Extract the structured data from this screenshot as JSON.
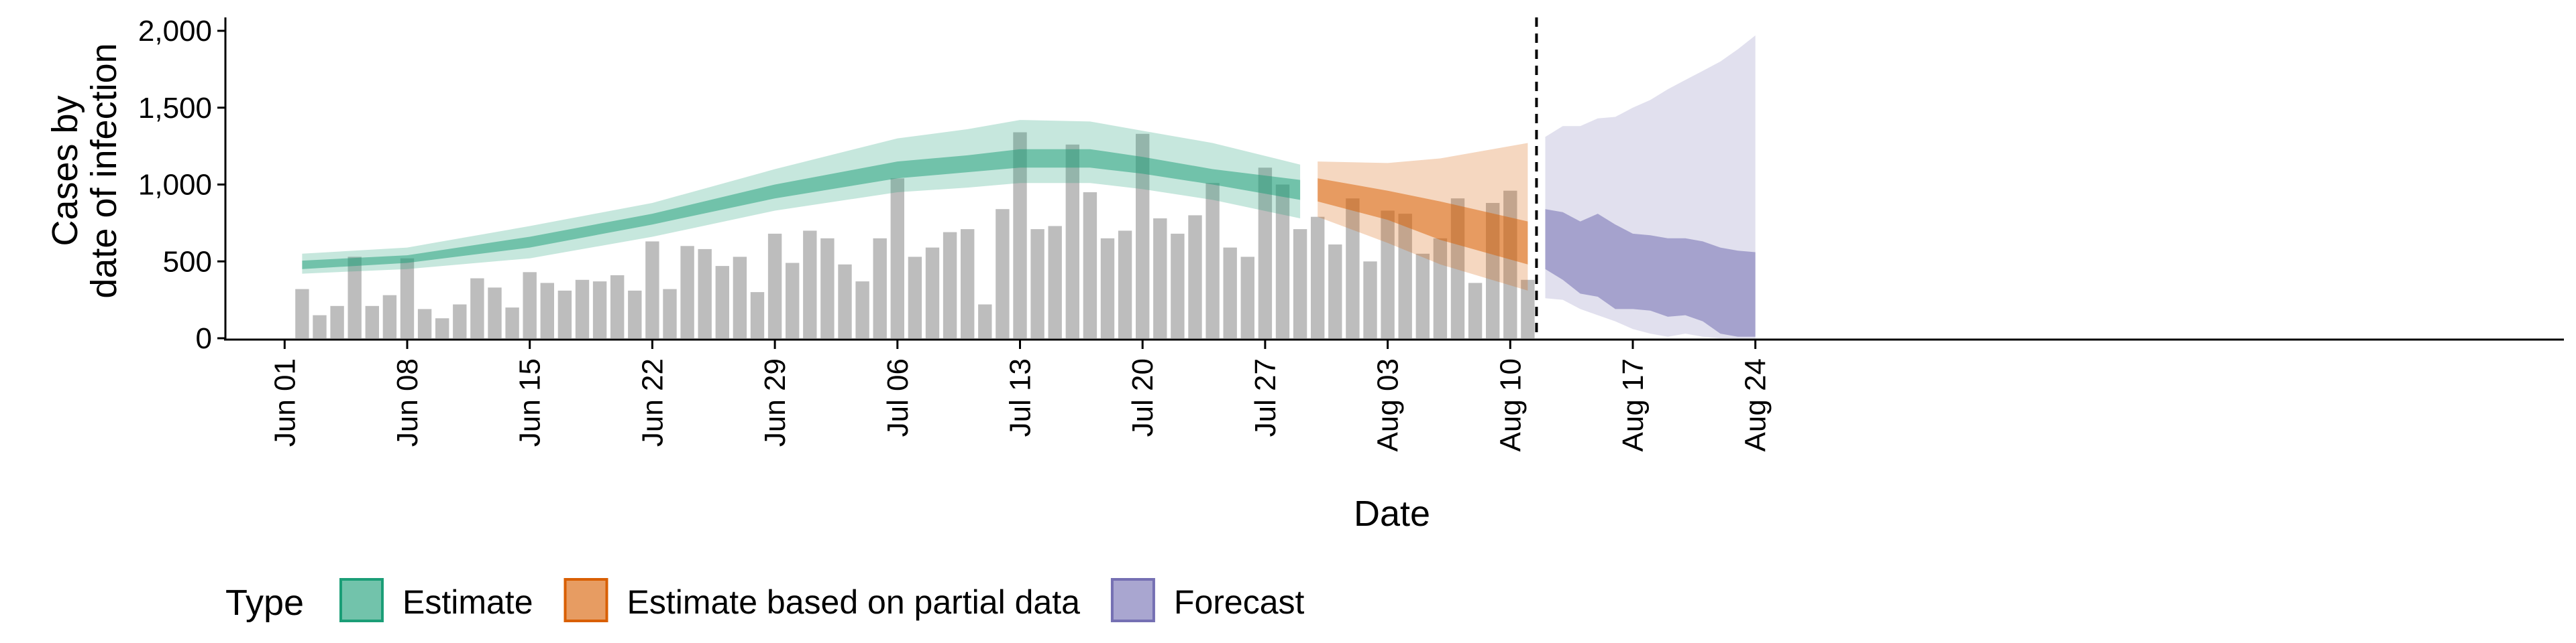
{
  "chart_data": {
    "type": "bar",
    "xlabel": "Date",
    "ylabel_lines": [
      "Cases by",
      "date of infection"
    ],
    "ylim": [
      0,
      2000
    ],
    "y_ticks": [
      0,
      500,
      1000,
      1500,
      2000
    ],
    "y_tick_labels": [
      "0",
      "500",
      "1,000",
      "1,500",
      "2,000"
    ],
    "x_ticks": [
      {
        "date": "2020-06-01",
        "label": "Jun 01"
      },
      {
        "date": "2020-06-08",
        "label": "Jun 08"
      },
      {
        "date": "2020-06-15",
        "label": "Jun 15"
      },
      {
        "date": "2020-06-22",
        "label": "Jun 22"
      },
      {
        "date": "2020-06-29",
        "label": "Jun 29"
      },
      {
        "date": "2020-07-06",
        "label": "Jul 06"
      },
      {
        "date": "2020-07-13",
        "label": "Jul 13"
      },
      {
        "date": "2020-07-20",
        "label": "Jul 20"
      },
      {
        "date": "2020-07-27",
        "label": "Jul 27"
      },
      {
        "date": "2020-08-03",
        "label": "Aug 03"
      },
      {
        "date": "2020-08-10",
        "label": "Aug 10"
      },
      {
        "date": "2020-08-17",
        "label": "Aug 17"
      },
      {
        "date": "2020-08-24",
        "label": "Aug 24"
      }
    ],
    "x_range": [
      "2020-05-29",
      "2020-08-28"
    ],
    "reported_cases": {
      "start_date": "2020-06-02",
      "values": [
        320,
        150,
        210,
        530,
        210,
        280,
        520,
        190,
        130,
        220,
        390,
        330,
        200,
        430,
        360,
        310,
        380,
        370,
        410,
        310,
        630,
        320,
        600,
        580,
        470,
        530,
        300,
        680,
        490,
        700,
        650,
        480,
        370,
        650,
        1040,
        530,
        590,
        690,
        710,
        220,
        840,
        1340,
        710,
        730,
        1260,
        950,
        650,
        700,
        1330,
        780,
        680,
        800,
        1010,
        590,
        530,
        1110,
        1000,
        710,
        790,
        610,
        910,
        500,
        830,
        810,
        550,
        650,
        910,
        360,
        880,
        960,
        380
      ]
    },
    "estimate_dates": [
      "2020-06-02",
      "2020-06-08",
      "2020-06-15",
      "2020-06-22",
      "2020-06-29",
      "2020-07-06",
      "2020-07-10",
      "2020-07-13",
      "2020-07-17",
      "2020-07-20",
      "2020-07-24",
      "2020-07-29"
    ],
    "estimate": {
      "outer_lower": [
        420,
        450,
        520,
        660,
        830,
        950,
        980,
        1010,
        1010,
        970,
        900,
        780
      ],
      "outer_upper": [
        550,
        590,
        730,
        880,
        1100,
        1300,
        1360,
        1420,
        1410,
        1350,
        1270,
        1130
      ],
      "inner_lower": [
        450,
        490,
        590,
        740,
        910,
        1040,
        1080,
        1110,
        1110,
        1070,
        1000,
        900
      ],
      "inner_upper": [
        505,
        540,
        660,
        810,
        1000,
        1150,
        1190,
        1230,
        1230,
        1180,
        1100,
        1030
      ]
    },
    "partial_dates": [
      "2020-07-30",
      "2020-08-03",
      "2020-08-06",
      "2020-08-11"
    ],
    "partial": {
      "outer_lower": [
        790,
        620,
        480,
        310
      ],
      "outer_upper": [
        1150,
        1140,
        1170,
        1270
      ],
      "inner_lower": [
        890,
        770,
        640,
        480
      ],
      "inner_upper": [
        1040,
        960,
        890,
        760
      ]
    },
    "forecast_dates": [
      "2020-08-12",
      "2020-08-13",
      "2020-08-14",
      "2020-08-15",
      "2020-08-16",
      "2020-08-17",
      "2020-08-18",
      "2020-08-19",
      "2020-08-20",
      "2020-08-21",
      "2020-08-22",
      "2020-08-23",
      "2020-08-24"
    ],
    "forecast": {
      "outer_lower": [
        260,
        250,
        190,
        150,
        110,
        60,
        30,
        10,
        30,
        10,
        0,
        0,
        0
      ],
      "outer_upper": [
        1310,
        1380,
        1380,
        1430,
        1440,
        1500,
        1550,
        1620,
        1680,
        1740,
        1800,
        1880,
        1970
      ],
      "inner_lower": [
        450,
        380,
        290,
        270,
        190,
        190,
        180,
        140,
        150,
        110,
        30,
        10,
        10
      ],
      "inner_upper": [
        840,
        820,
        760,
        810,
        740,
        680,
        670,
        650,
        650,
        630,
        590,
        570,
        560
      ]
    },
    "cutoff_date": "2020-08-11",
    "legend": {
      "title": "Type",
      "position": "bottom",
      "items": [
        {
          "label": "Estimate",
          "color": "#1b9e77"
        },
        {
          "label": "Estimate based on partial data",
          "color": "#d95f02"
        },
        {
          "label": "Forecast",
          "color": "#7570b3"
        }
      ]
    },
    "colors": {
      "bars": "#bdbdbd",
      "estimate": "#1b9e77",
      "partial": "#d95f02",
      "forecast": "#7570b3"
    }
  }
}
